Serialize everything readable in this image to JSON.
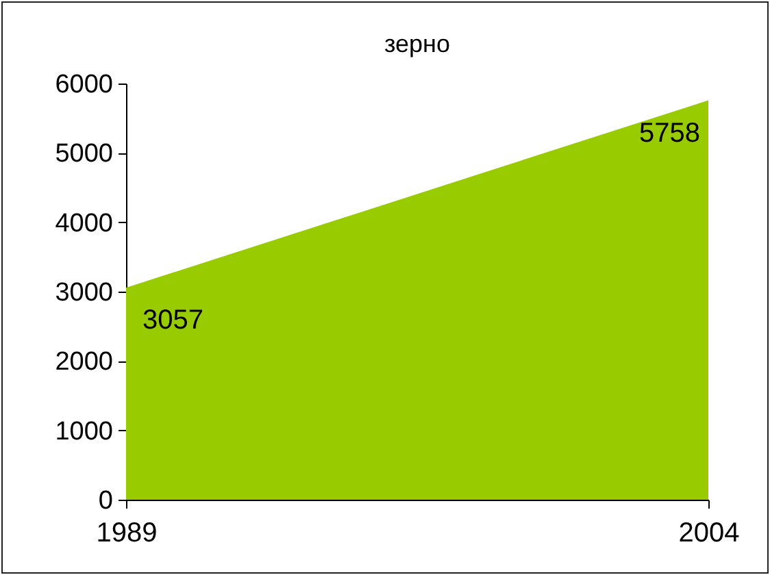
{
  "chart_data": {
    "type": "area",
    "title": "зерно",
    "categories": [
      "1989",
      "2004"
    ],
    "series": [
      {
        "color": "#99cc00",
        "values": [
          3057,
          5758
        ]
      }
    ],
    "ylim": [
      0,
      6000
    ],
    "yticks": [
      0,
      1000,
      2000,
      3000,
      4000,
      5000,
      6000
    ],
    "data_labels": true,
    "grid": false
  }
}
